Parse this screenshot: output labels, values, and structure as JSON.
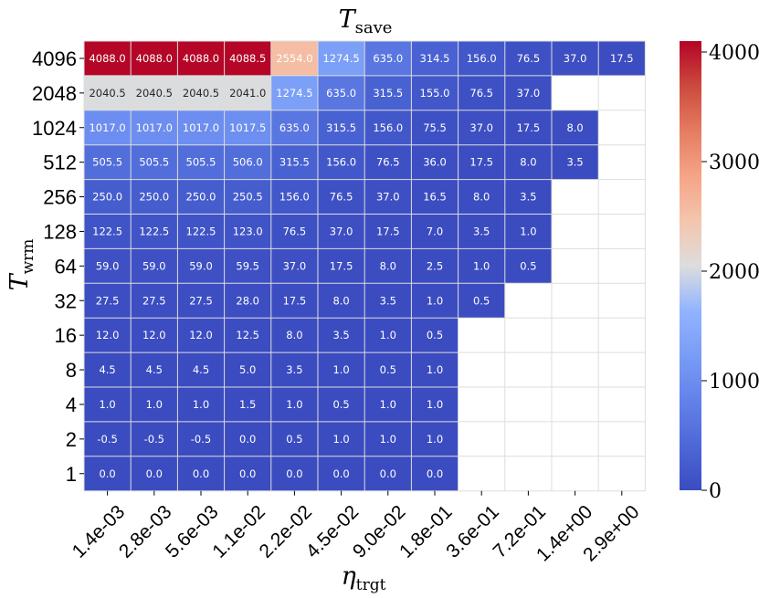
{
  "chart_data": {
    "type": "heatmap",
    "title": "T",
    "title_sub": "save",
    "xlabel": "η",
    "xlabel_sub": "trgt",
    "ylabel": "T",
    "ylabel_sub": "wrm",
    "x_categories": [
      "1.4e-03",
      "2.8e-03",
      "5.6e-03",
      "1.1e-02",
      "2.2e-02",
      "4.5e-02",
      "9.0e-02",
      "1.8e-01",
      "3.6e-01",
      "7.2e-01",
      "1.4e+00",
      "2.9e+00"
    ],
    "y_categories": [
      "4096",
      "2048",
      "1024",
      "512",
      "256",
      "128",
      "64",
      "32",
      "16",
      "8",
      "4",
      "2",
      "1"
    ],
    "values": [
      [
        "4088.0",
        "4088.0",
        "4088.0",
        "4088.5",
        "2554.0",
        "1274.5",
        "635.0",
        "314.5",
        "156.0",
        "76.5",
        "37.0",
        "17.5"
      ],
      [
        "2040.5",
        "2040.5",
        "2040.5",
        "2041.0",
        "1274.5",
        "635.0",
        "315.5",
        "155.0",
        "76.5",
        "37.0",
        null,
        null
      ],
      [
        "1017.0",
        "1017.0",
        "1017.0",
        "1017.5",
        "635.0",
        "315.5",
        "156.0",
        "75.5",
        "37.0",
        "17.5",
        "8.0",
        null
      ],
      [
        "505.5",
        "505.5",
        "505.5",
        "506.0",
        "315.5",
        "156.0",
        "76.5",
        "36.0",
        "17.5",
        "8.0",
        "3.5",
        null
      ],
      [
        "250.0",
        "250.0",
        "250.0",
        "250.5",
        "156.0",
        "76.5",
        "37.0",
        "16.5",
        "8.0",
        "3.5",
        null,
        null
      ],
      [
        "122.5",
        "122.5",
        "122.5",
        "123.0",
        "76.5",
        "37.0",
        "17.5",
        "7.0",
        "3.5",
        "1.0",
        null,
        null
      ],
      [
        "59.0",
        "59.0",
        "59.0",
        "59.5",
        "37.0",
        "17.5",
        "8.0",
        "2.5",
        "1.0",
        "0.5",
        null,
        null
      ],
      [
        "27.5",
        "27.5",
        "27.5",
        "28.0",
        "17.5",
        "8.0",
        "3.5",
        "1.0",
        "0.5",
        null,
        null,
        null
      ],
      [
        "12.0",
        "12.0",
        "12.0",
        "12.5",
        "8.0",
        "3.5",
        "1.0",
        "0.5",
        null,
        null,
        null,
        null
      ],
      [
        "4.5",
        "4.5",
        "4.5",
        "5.0",
        "3.5",
        "1.0",
        "0.5",
        "1.0",
        null,
        null,
        null,
        null
      ],
      [
        "1.0",
        "1.0",
        "1.0",
        "1.5",
        "1.0",
        "0.5",
        "1.0",
        "1.0",
        null,
        null,
        null,
        null
      ],
      [
        "-0.5",
        "-0.5",
        "-0.5",
        "0.0",
        "0.5",
        "1.0",
        "1.0",
        "1.0",
        null,
        null,
        null,
        null
      ],
      [
        "0.0",
        "0.0",
        "0.0",
        "0.0",
        "0.0",
        "0.0",
        "0.0",
        "0.0",
        null,
        null,
        null,
        null
      ]
    ],
    "colorbar": {
      "min": 0,
      "max": 4100,
      "ticks": [
        "0",
        "1000",
        "2000",
        "3000",
        "4000"
      ],
      "colormap": "coolwarm",
      "low_color": "#3b4cc0",
      "mid_color": "#dddddd",
      "high_color": "#b40426"
    },
    "grid_color": "#dddddd"
  }
}
